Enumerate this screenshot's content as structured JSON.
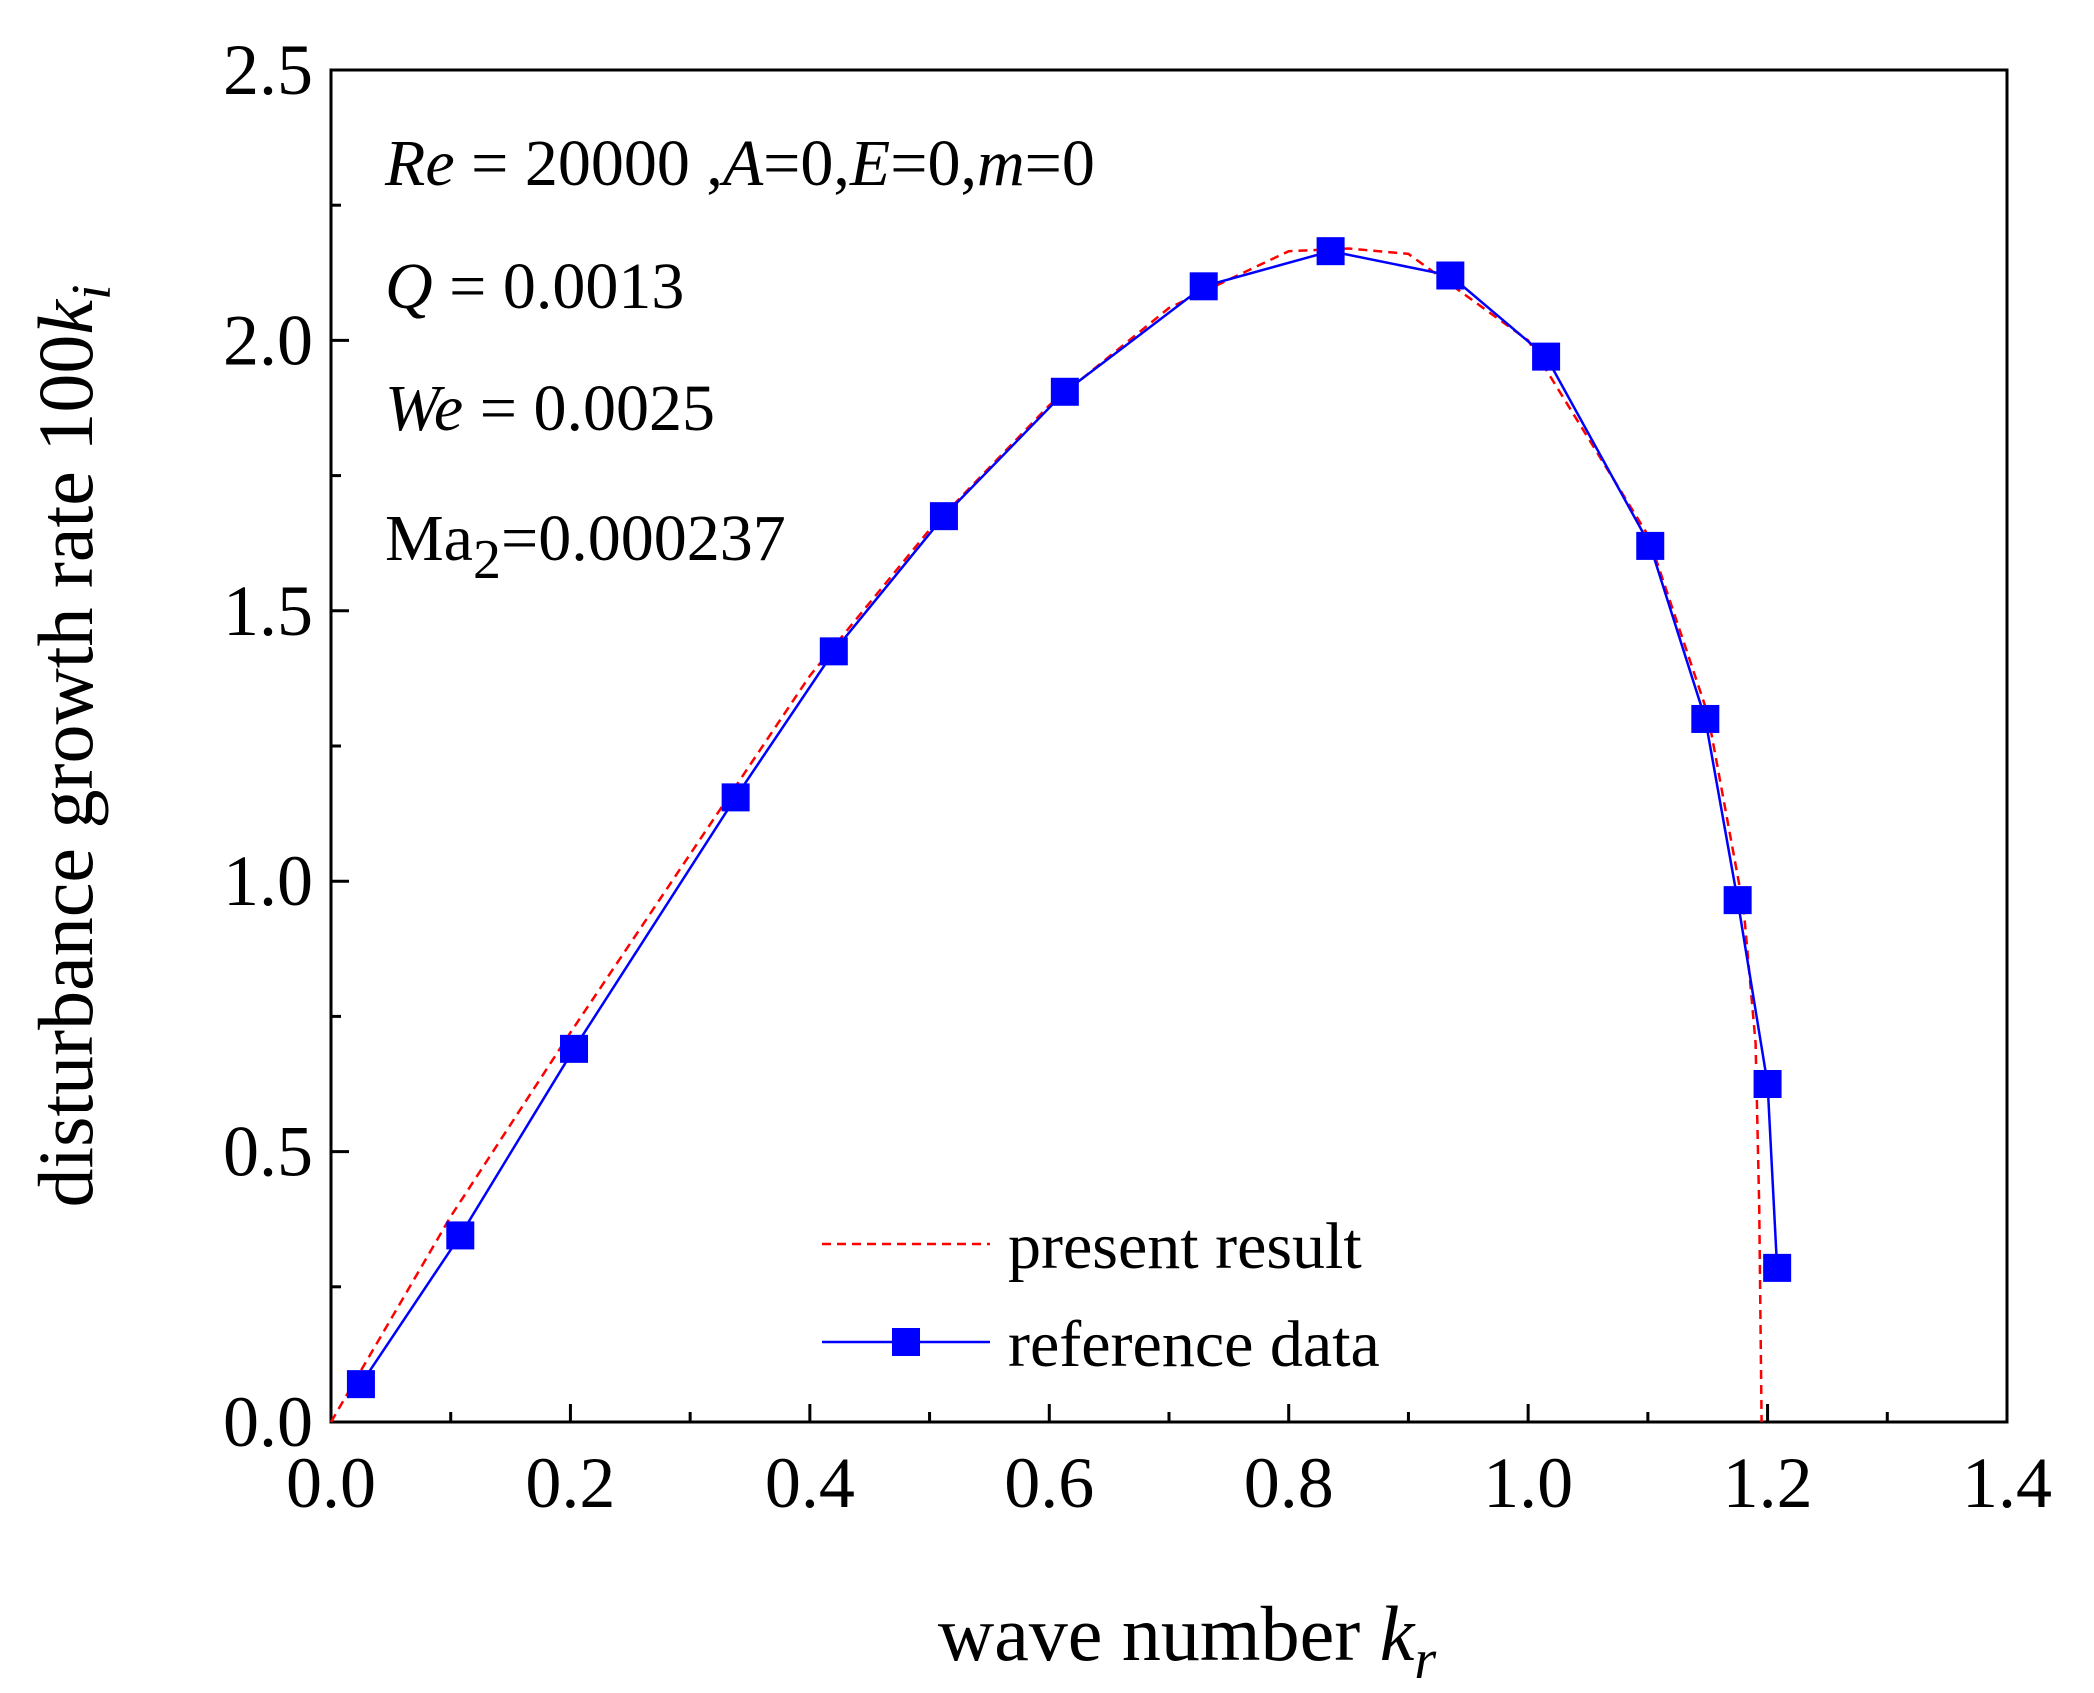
{
  "chart_data": {
    "type": "line",
    "xlabel": "wave number",
    "xlabel_symbol": "k",
    "xlabel_sub": "r",
    "ylabel": "disturbance growth rate 100",
    "ylabel_symbol": "k",
    "ylabel_sub": "i",
    "xlim": [
      0.0,
      1.4
    ],
    "ylim": [
      0.0,
      2.5
    ],
    "x_ticks": [
      "0.0",
      "0.2",
      "0.4",
      "0.6",
      "0.8",
      "1.0",
      "1.2",
      "1.4"
    ],
    "y_ticks": [
      "0.0",
      "0.5",
      "1.0",
      "1.5",
      "2.0",
      "2.5"
    ],
    "annotations": {
      "line1": {
        "re_sym": "Re",
        "re_val": " = 20000 ,",
        "a_sym": "A",
        "a_val": "=0,",
        "e_sym": "E",
        "e_val": "=0,",
        "m_sym": "m",
        "m_val": "=0"
      },
      "line2": {
        "sym": "Q",
        "val": " = 0.0013"
      },
      "line3": {
        "sym": "We",
        "val": " = 0.0025"
      },
      "line4": {
        "base": "Ma",
        "sub": "2",
        "val": "=0.000237"
      }
    },
    "legend_position": "bottom-right",
    "series": [
      {
        "name": "present result",
        "style": "dashed",
        "color": "#ff0000",
        "x": [
          0.0,
          0.1,
          0.2,
          0.3,
          0.4,
          0.5,
          0.6,
          0.7,
          0.8,
          0.85,
          0.9,
          1.0,
          1.1,
          1.15,
          1.18,
          1.19,
          1.193,
          1.195
        ],
        "y": [
          0.0,
          0.38,
          0.72,
          1.05,
          1.38,
          1.65,
          1.88,
          2.06,
          2.165,
          2.17,
          2.16,
          2.0,
          1.64,
          1.31,
          0.95,
          0.7,
          0.4,
          0.0
        ]
      },
      {
        "name": "reference data",
        "style": "solid-square",
        "color": "#0000ff",
        "x": [
          0.025,
          0.108,
          0.203,
          0.338,
          0.42,
          0.512,
          0.613,
          0.729,
          0.835,
          0.935,
          1.015,
          1.102,
          1.148,
          1.175,
          1.2,
          1.208
        ],
        "y": [
          0.07,
          0.345,
          0.69,
          1.155,
          1.425,
          1.675,
          1.905,
          2.1,
          2.165,
          2.12,
          1.97,
          1.62,
          1.3,
          0.965,
          0.625,
          0.285
        ]
      }
    ]
  },
  "colors": {
    "present": "#ff0000",
    "reference": "#0000ff",
    "axis": "#000000"
  }
}
